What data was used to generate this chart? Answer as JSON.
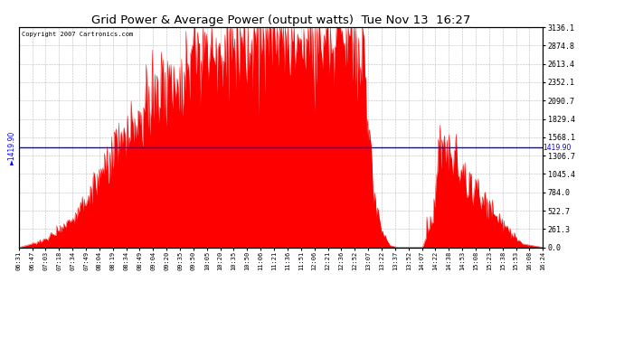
{
  "title": "Grid Power & Average Power (output watts)  Tue Nov 13  16:27",
  "copyright": "Copyright 2007 Cartronics.com",
  "avg_line_value": 1419.9,
  "avg_label": "1419.90",
  "ymax": 3136.1,
  "ymin": 0.0,
  "right_yticks": [
    0.0,
    261.3,
    522.7,
    784.0,
    1045.4,
    1306.7,
    1568.1,
    1829.4,
    2090.7,
    2352.1,
    2613.4,
    2874.8,
    3136.1
  ],
  "right_ytick_labels": [
    "0.0",
    "261.3",
    "522.7",
    "784.0",
    "1045.4",
    "1306.7",
    "1568.1",
    "1829.4",
    "2090.7",
    "2352.1",
    "2613.4",
    "2874.8",
    "3136.1"
  ],
  "fill_color": "#FF0000",
  "line_color": "#0000FF",
  "bg_color": "#FFFFFF",
  "grid_color": "#BBBBBB",
  "xtick_labels": [
    "06:31",
    "06:47",
    "07:03",
    "07:18",
    "07:34",
    "07:49",
    "08:04",
    "08:19",
    "08:34",
    "08:49",
    "09:04",
    "09:20",
    "09:35",
    "09:50",
    "10:05",
    "10:20",
    "10:35",
    "10:50",
    "11:06",
    "11:21",
    "11:36",
    "11:51",
    "12:06",
    "12:21",
    "12:36",
    "12:52",
    "13:07",
    "13:22",
    "13:37",
    "13:52",
    "14:07",
    "14:22",
    "14:38",
    "14:53",
    "15:08",
    "15:23",
    "15:38",
    "15:53",
    "16:08",
    "16:24"
  ]
}
